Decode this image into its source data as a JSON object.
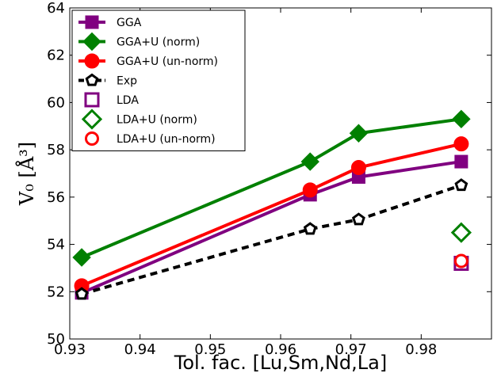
{
  "chart_data": {
    "type": "line",
    "xlabel": "Tol. fac. [Lu,Sm,Nd,La]",
    "ylabel": "V₀ [Å³]",
    "xlim": [
      0.93,
      0.99
    ],
    "ylim": [
      50,
      64
    ],
    "x_ticks": [
      0.93,
      0.94,
      0.95,
      0.96,
      0.97,
      0.98
    ],
    "x_tick_labels": [
      "0.93",
      "0.94",
      "0.95",
      "0.96",
      "0.97",
      "0.98"
    ],
    "y_ticks": [
      50,
      52,
      54,
      56,
      58,
      60,
      62,
      64
    ],
    "y_tick_labels": [
      "50",
      "52",
      "54",
      "56",
      "58",
      "60",
      "62",
      "64"
    ],
    "grid": false,
    "legend_position": "top-left",
    "series": [
      {
        "name": "GGA",
        "color": "#800080",
        "marker": "square",
        "filled": true,
        "line": "solid",
        "x": [
          0.9317,
          0.9642,
          0.9711,
          0.9857
        ],
        "y": [
          51.95,
          56.1,
          56.85,
          57.5
        ]
      },
      {
        "name": "GGA+U (norm)",
        "color": "#008000",
        "marker": "diamond",
        "filled": true,
        "line": "solid",
        "x": [
          0.9317,
          0.9642,
          0.9711,
          0.9857
        ],
        "y": [
          53.45,
          57.5,
          58.7,
          59.3
        ]
      },
      {
        "name": "GGA+U (un-norm)",
        "color": "#ff0000",
        "marker": "circle",
        "filled": true,
        "line": "solid",
        "x": [
          0.9317,
          0.9642,
          0.9711,
          0.9857
        ],
        "y": [
          52.25,
          56.3,
          57.25,
          58.25
        ]
      },
      {
        "name": "Exp",
        "color": "#000000",
        "marker": "pentagon",
        "filled": false,
        "line": "dashed",
        "x": [
          0.9317,
          0.9642,
          0.9711,
          0.9857
        ],
        "y": [
          51.9,
          54.65,
          55.05,
          56.5
        ]
      },
      {
        "name": "LDA",
        "color": "#800080",
        "marker": "square",
        "filled": false,
        "line": "none",
        "x": [
          0.9857
        ],
        "y": [
          53.2
        ]
      },
      {
        "name": "LDA+U (norm)",
        "color": "#008000",
        "marker": "diamond",
        "filled": false,
        "line": "none",
        "x": [
          0.9857
        ],
        "y": [
          54.5
        ]
      },
      {
        "name": "LDA+U (un-norm)",
        "color": "#ff0000",
        "marker": "circle",
        "filled": false,
        "line": "none",
        "x": [
          0.9857
        ],
        "y": [
          53.3
        ]
      }
    ]
  }
}
